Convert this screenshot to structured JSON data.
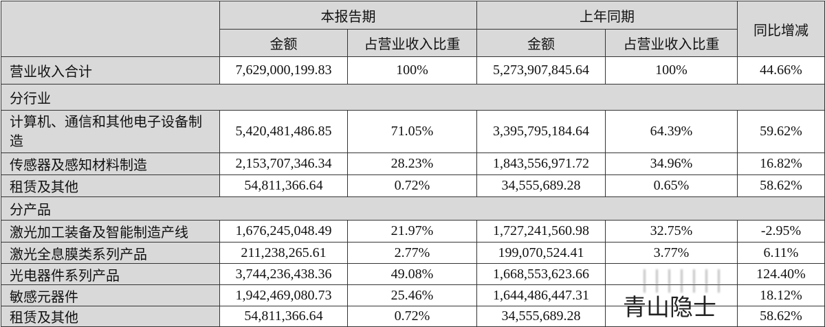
{
  "header": {
    "current_period": "本报告期",
    "prior_period": "上年同期",
    "yoy": "同比增减",
    "amount": "金额",
    "share": "占营业收入比重"
  },
  "total": {
    "label": "营业收入合计",
    "cur_amt": "7,629,000,199.83",
    "cur_pct": "100%",
    "prev_amt": "5,273,907,845.64",
    "prev_pct": "100%",
    "yoy": "44.66%"
  },
  "section_industry": "分行业",
  "industry_rows": [
    {
      "label": "计算机、通信和其他电子设备制造",
      "cur_amt": "5,420,481,486.85",
      "cur_pct": "71.05%",
      "prev_amt": "3,395,795,184.64",
      "prev_pct": "64.39%",
      "yoy": "59.62%"
    },
    {
      "label": "传感器及感知材料制造",
      "cur_amt": "2,153,707,346.34",
      "cur_pct": "28.23%",
      "prev_amt": "1,843,556,971.72",
      "prev_pct": "34.96%",
      "yoy": "16.82%"
    },
    {
      "label": "租赁及其他",
      "cur_amt": "54,811,366.64",
      "cur_pct": "0.72%",
      "prev_amt": "34,555,689.28",
      "prev_pct": "0.65%",
      "yoy": "58.62%"
    }
  ],
  "section_product": "分产品",
  "product_rows": [
    {
      "label": "激光加工装备及智能制造产线",
      "cur_amt": "1,676,245,048.49",
      "cur_pct": "21.97%",
      "prev_amt": "1,727,241,560.98",
      "prev_pct": "32.75%",
      "yoy": "-2.95%"
    },
    {
      "label": "激光全息膜类系列产品",
      "cur_amt": "211,238,265.61",
      "cur_pct": "2.77%",
      "prev_amt": "199,070,524.41",
      "prev_pct": "3.77%",
      "yoy": "6.11%"
    },
    {
      "label": "光电器件系列产品",
      "cur_amt": "3,744,236,438.36",
      "cur_pct": "49.08%",
      "prev_amt": "1,668,553,623.66",
      "prev_pct": "",
      "yoy": "124.40%"
    },
    {
      "label": "敏感元器件",
      "cur_amt": "1,942,469,080.73",
      "cur_pct": "25.46%",
      "prev_amt": "1,644,486,447.31",
      "prev_pct": "",
      "yoy": "18.12%"
    },
    {
      "label": "租赁及其他",
      "cur_amt": "54,811,366.64",
      "cur_pct": "0.72%",
      "prev_amt": "34,555,689.28",
      "prev_pct": "",
      "yoy": "58.62%"
    }
  ],
  "watermark": "青山隐士"
}
